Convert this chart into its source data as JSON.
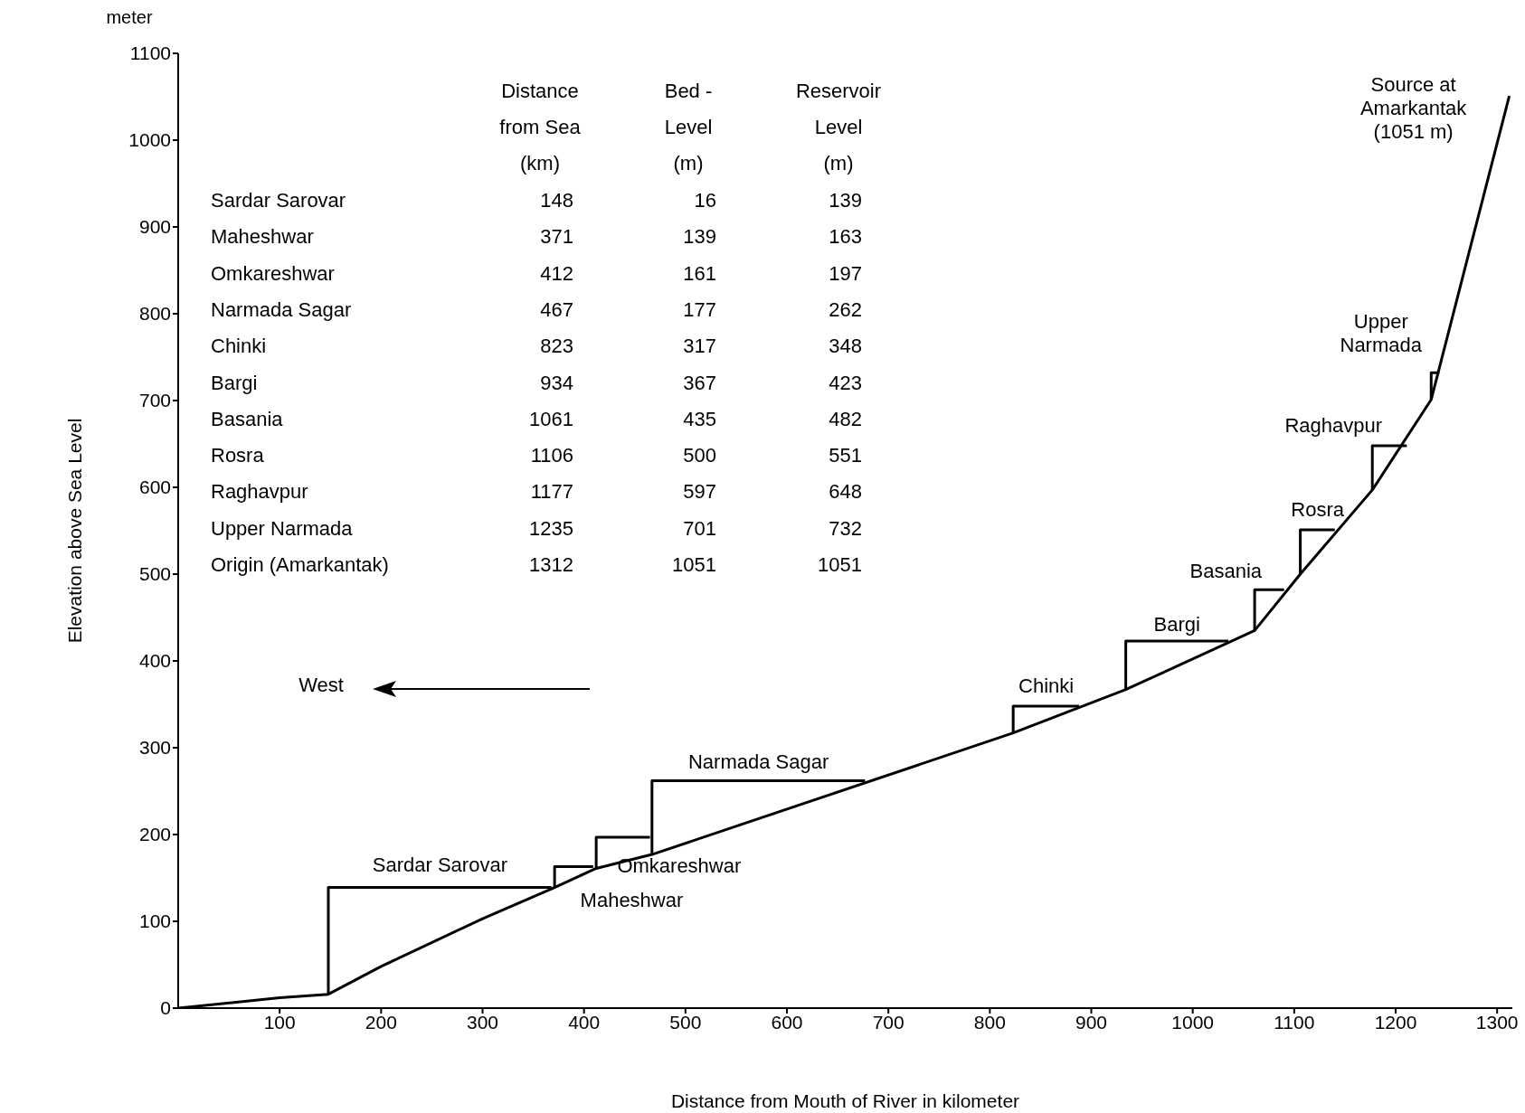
{
  "chart_data": {
    "type": "line",
    "xlabel": "Distance from Mouth of River in kilometer",
    "ylabel": "Elevation above Sea Level",
    "xlim": [
      0,
      1315
    ],
    "xticks": [
      100,
      200,
      300,
      400,
      500,
      600,
      700,
      800,
      900,
      1000,
      1100,
      1200,
      1300
    ],
    "ylim": [
      0,
      1100
    ],
    "yticks": [
      0,
      100,
      200,
      300,
      400,
      500,
      600,
      700,
      800,
      900,
      1000,
      1100
    ],
    "marker": "none",
    "line_style": "solid",
    "grid": false,
    "series": [
      {
        "color": "#000000",
        "x": [
          0,
          100,
          148,
          200,
          300,
          371,
          412,
          467,
          823,
          934,
          1061,
          1106,
          1177,
          1235,
          1312
        ],
        "values": [
          0,
          12,
          16,
          48,
          103,
          139,
          161,
          177,
          317,
          367,
          435,
          500,
          597,
          701,
          1051
        ]
      },
      {
        "name": "Sardar Sarovar",
        "color": "#000000",
        "x": [
          148,
          148,
          368
        ],
        "values": [
          16,
          139,
          139
        ]
      },
      {
        "name": "Maheshwar",
        "color": "#000000",
        "x": [
          371,
          371,
          409
        ],
        "values": [
          139,
          163,
          163
        ]
      },
      {
        "name": "Omkareshwar",
        "color": "#000000",
        "x": [
          412,
          412,
          465
        ],
        "values": [
          161,
          197,
          197
        ]
      },
      {
        "name": "Narmada Sagar",
        "color": "#000000",
        "x": [
          467,
          467,
          677
        ],
        "values": [
          177,
          262,
          262
        ]
      },
      {
        "name": "Chinki",
        "color": "#000000",
        "x": [
          823,
          823,
          888
        ],
        "values": [
          317,
          348,
          348
        ]
      },
      {
        "name": "Bargi",
        "color": "#000000",
        "x": [
          934,
          934,
          1035
        ],
        "values": [
          367,
          423,
          423
        ]
      },
      {
        "name": "Basania",
        "color": "#000000",
        "x": [
          1061,
          1061,
          1090
        ],
        "values": [
          435,
          482,
          482
        ]
      },
      {
        "name": "Rosra",
        "color": "#000000",
        "x": [
          1106,
          1106,
          1140
        ],
        "values": [
          500,
          551,
          551
        ]
      },
      {
        "name": "Raghavpur",
        "color": "#000000",
        "x": [
          1177,
          1177,
          1211
        ],
        "values": [
          597,
          648,
          648
        ]
      },
      {
        "name": "Upper Narmada",
        "color": "#000000",
        "x": [
          1235,
          1235,
          1243
        ],
        "values": [
          701,
          732,
          732
        ]
      }
    ],
    "annotations": [
      "meter",
      "Distance from Sea (km)",
      "Bed - Level (m)",
      "Reservoir Level (m)",
      "West",
      {
        "text": "Source at Amarkantak (1051 m)",
        "x": 1312,
        "y": 1051
      },
      "Sardar Sarovar",
      "148",
      "16",
      "139",
      "Maheshwar",
      "371",
      "139",
      "163",
      "Omkareshwar",
      "412",
      "161",
      "197",
      "Narmada Sagar",
      "467",
      "177",
      "262",
      "Chinki",
      "823",
      "317",
      "348",
      "Bargi",
      "934",
      "367",
      "423",
      "Basania",
      "1061",
      "435",
      "482",
      "Rosra",
      "1106",
      "500",
      "551",
      "Raghavpur",
      "1177",
      "597",
      "648",
      "Upper Narmada",
      "1235",
      "701",
      "732",
      "Origin (Amarkantak)",
      "1312",
      "1051",
      "1051"
    ]
  }
}
